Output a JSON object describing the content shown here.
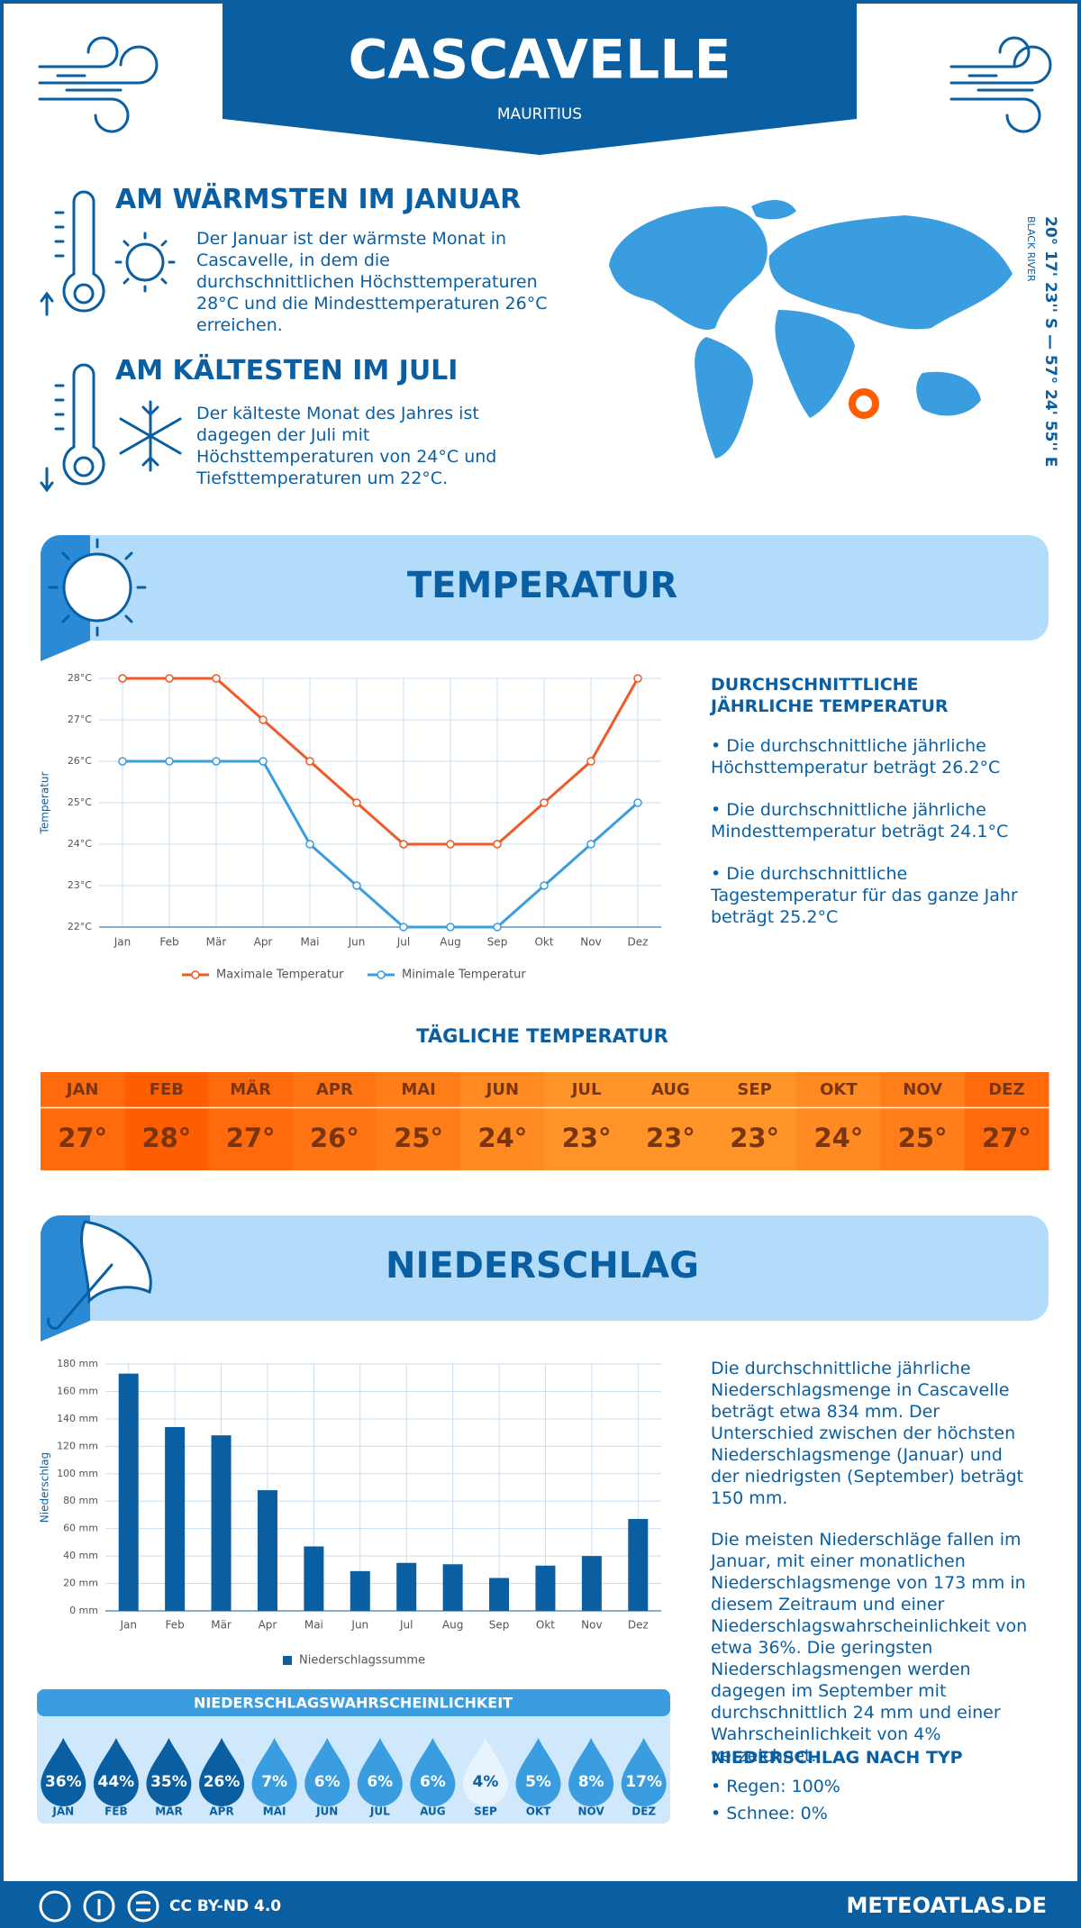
{
  "header": {
    "title": "CASCAVELLE",
    "subtitle": "MAURITIUS"
  },
  "warmest": {
    "title": "AM WÄRMSTEN IM JANUAR",
    "text": "Der Januar ist der wärmste Monat in Cascavelle, in dem die durchschnittlichen Höchsttemperaturen 28°C und die Mindesttemperaturen 26°C erreichen."
  },
  "coldest": {
    "title": "AM KÄLTESTEN IM JULI",
    "text": "Der kälteste Monat des Jahres ist dagegen der Juli mit Höchsttemperaturen von 24°C und Tiefsttemperaturen um 22°C."
  },
  "map": {
    "coordinates": "20° 17' 23'' S — 57° 24' 55'' E",
    "region": "BLACK RIVER"
  },
  "temperature": {
    "title": "TEMPERATUR",
    "stats_title": "DURCHSCHNITTLICHE JÄHRLICHE TEMPERATUR",
    "stats": [
      "• Die durchschnittliche jährliche Höchsttemperatur beträgt 26.2°C",
      "• Die durchschnittliche jährliche Mindesttemperatur beträgt 24.1°C",
      "• Die durchschnittliche Tagestemperatur für das ganze Jahr beträgt 25.2°C"
    ]
  },
  "daily": {
    "title": "TÄGLICHE TEMPERATUR",
    "months": [
      "JAN",
      "FEB",
      "MÄR",
      "APR",
      "MAI",
      "JUN",
      "JUL",
      "AUG",
      "SEP",
      "OKT",
      "NOV",
      "DEZ"
    ],
    "values": [
      27,
      28,
      27,
      26,
      25,
      24,
      23,
      23,
      23,
      24,
      25,
      27
    ],
    "value_labels": [
      "27°",
      "28°",
      "27°",
      "26°",
      "25°",
      "24°",
      "23°",
      "23°",
      "23°",
      "24°",
      "25°",
      "27°"
    ],
    "colors": [
      "#ff6a0c",
      "#ff5e00",
      "#ff6a0c",
      "#ff7414",
      "#ff7e1a",
      "#ff8a22",
      "#ff9428",
      "#ff9428",
      "#ff9428",
      "#ff8a22",
      "#ff7e1a",
      "#ff6a0c"
    ]
  },
  "precipitation": {
    "title": "NIEDERSCHLAG",
    "text": [
      "Die durchschnittliche jährliche Niederschlagsmenge in Cascavelle beträgt etwa 834 mm. Der Unterschied zwischen der höchsten Niederschlagsmenge (Januar) und der niedrigsten (September) beträgt 150 mm.",
      "Die meisten Niederschläge fallen im Januar, mit einer monatlichen Niederschlagsmenge von 173 mm in diesem Zeitraum und einer Niederschlagswahrscheinlichkeit von etwa 36%. Die geringsten Niederschlagsmengen werden dagegen im September mit durchschnittlich 24 mm und einer Wahrscheinlichkeit von 4% verzeichnet."
    ],
    "type_title": "NIEDERSCHLAG NACH TYP",
    "types": [
      "• Regen: 100%",
      "• Schnee: 0%"
    ]
  },
  "probability": {
    "title": "NIEDERSCHLAGSWAHRSCHEINLICHKEIT",
    "months": [
      "JAN",
      "FEB",
      "MÄR",
      "APR",
      "MAI",
      "JUN",
      "JUL",
      "AUG",
      "SEP",
      "OKT",
      "NOV",
      "DEZ"
    ],
    "values": [
      36,
      44,
      35,
      26,
      7,
      6,
      6,
      6,
      4,
      5,
      8,
      17
    ],
    "value_labels": [
      "36%",
      "44%",
      "35%",
      "26%",
      "7%",
      "6%",
      "6%",
      "6%",
      "4%",
      "5%",
      "8%",
      "17%"
    ],
    "colors": [
      "#0a5fa3",
      "#0a5fa3",
      "#0a5fa3",
      "#0a5fa3",
      "#3a9de0",
      "#3a9de0",
      "#3a9de0",
      "#3a9de0",
      "#e8f4fd",
      "#3a9de0",
      "#3a9de0",
      "#3a9de0"
    ]
  },
  "footer": {
    "license": "CC BY-ND 4.0",
    "site": "METEOATLAS.DE"
  },
  "chart_data": [
    {
      "type": "line",
      "y_label": "Temperatur",
      "categories": [
        "Jan",
        "Feb",
        "Mär",
        "Apr",
        "Mai",
        "Jun",
        "Jul",
        "Aug",
        "Sep",
        "Okt",
        "Nov",
        "Dez"
      ],
      "series": [
        {
          "name": "Maximale Temperatur",
          "color": "#f05a28",
          "values": [
            28,
            28,
            28,
            27,
            26,
            25,
            24,
            24,
            24,
            25,
            26,
            28
          ]
        },
        {
          "name": "Minimale Temperatur",
          "color": "#3a9de0",
          "values": [
            26,
            26,
            26,
            26,
            24,
            23,
            22,
            22,
            22,
            23,
            24,
            25
          ]
        }
      ],
      "ylim": [
        22,
        28
      ],
      "yticks": [
        {
          "value": 22,
          "label": "22°C"
        },
        {
          "value": 23,
          "label": "23°C"
        },
        {
          "value": 24,
          "label": "24°C"
        },
        {
          "value": 25,
          "label": "25°C"
        },
        {
          "value": 26,
          "label": "26°C"
        },
        {
          "value": 27,
          "label": "27°C"
        },
        {
          "value": 28,
          "label": "28°C"
        }
      ],
      "grid": true
    },
    {
      "type": "bar",
      "y_label": "Niederschlag",
      "categories": [
        "Jan",
        "Feb",
        "Mär",
        "Apr",
        "Mai",
        "Jun",
        "Jul",
        "Aug",
        "Sep",
        "Okt",
        "Nov",
        "Dez"
      ],
      "series": [
        {
          "name": "Niederschlagssumme",
          "color": "#0a5fa3",
          "values": [
            173,
            134,
            128,
            88,
            47,
            29,
            35,
            34,
            24,
            33,
            40,
            67
          ]
        }
      ],
      "ylim": [
        0,
        180
      ],
      "yticks": [
        {
          "value": 0,
          "label": "0 mm"
        },
        {
          "value": 20,
          "label": "20 mm"
        },
        {
          "value": 40,
          "label": "40 mm"
        },
        {
          "value": 60,
          "label": "60 mm"
        },
        {
          "value": 80,
          "label": "80 mm"
        },
        {
          "value": 100,
          "label": "100 mm"
        },
        {
          "value": 120,
          "label": "120 mm"
        },
        {
          "value": 140,
          "label": "140 mm"
        },
        {
          "value": 160,
          "label": "160 mm"
        },
        {
          "value": 180,
          "label": "180 mm"
        }
      ],
      "grid": true
    }
  ]
}
